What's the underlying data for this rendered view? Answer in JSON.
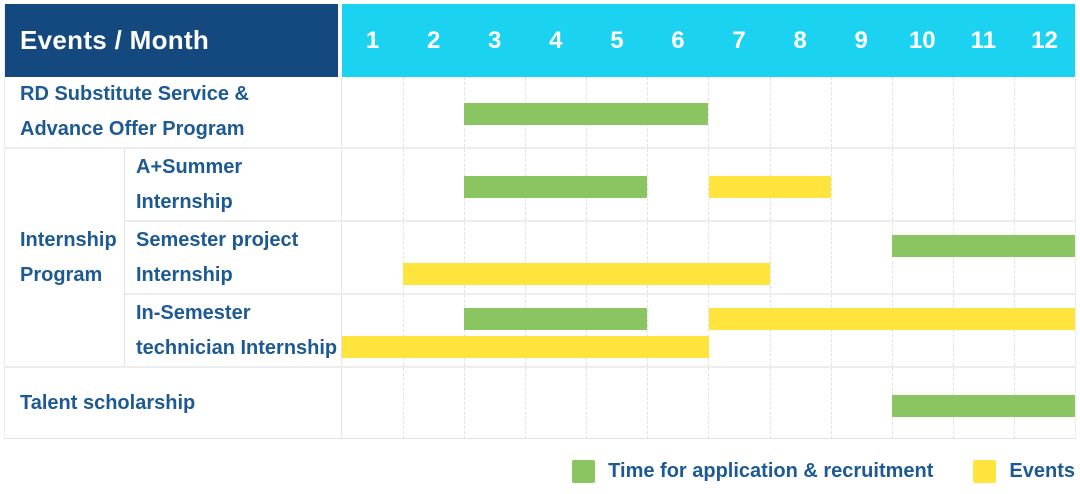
{
  "colors": {
    "navy": "#14497F",
    "cyan": "#1BD2F0",
    "application": "#8BC562",
    "events": "#FFE43D",
    "label_text": "#1D5A93"
  },
  "table": {
    "header": {
      "label": "Events / Month",
      "months": [
        "1",
        "2",
        "3",
        "4",
        "5",
        "6",
        "7",
        "8",
        "9",
        "10",
        "11",
        "12"
      ]
    },
    "body": [
      {
        "kind": "simple",
        "label_lines": [
          "RD Substitute Service &",
          "Advance Offer Program"
        ],
        "bars": [
          {
            "type": "application",
            "from": 3,
            "to": 6,
            "line": "center"
          }
        ]
      },
      {
        "kind": "group",
        "label_lines": [
          "Internship",
          "Program"
        ],
        "children": [
          {
            "label_lines": [
              "A+Summer",
              "Internship"
            ],
            "bars": [
              {
                "type": "application",
                "from": 3,
                "to": 5,
                "line": "center"
              },
              {
                "type": "events",
                "from": 7,
                "to": 8,
                "line": "center"
              }
            ]
          },
          {
            "label_lines": [
              "Semester project",
              "Internship"
            ],
            "bars": [
              {
                "type": "application",
                "from": 10,
                "to": 12,
                "line": "top"
              },
              {
                "type": "events",
                "from": 2,
                "to": 7,
                "line": "bottom"
              }
            ]
          },
          {
            "label_lines": [
              "In-Semester",
              "technician Internship"
            ],
            "bars": [
              {
                "type": "application",
                "from": 3,
                "to": 5,
                "line": "top"
              },
              {
                "type": "events",
                "from": 7,
                "to": 12,
                "line": "top"
              },
              {
                "type": "events",
                "from": 1,
                "to": 6,
                "line": "bottom"
              }
            ]
          }
        ]
      },
      {
        "kind": "simple",
        "label_lines": [
          "Talent scholarship"
        ],
        "bars": [
          {
            "type": "application",
            "from": 10,
            "to": 12,
            "line": "center"
          }
        ]
      }
    ]
  },
  "legend": [
    {
      "key": "application",
      "label": "Time for application & recruitment"
    },
    {
      "key": "events",
      "label": "Events"
    }
  ],
  "chart_data": {
    "type": "gantt",
    "title": "Events / Month",
    "x_axis": {
      "label": "Month",
      "ticks": [
        1,
        2,
        3,
        4,
        5,
        6,
        7,
        8,
        9,
        10,
        11,
        12
      ],
      "range": [
        1,
        12
      ]
    },
    "grid": true,
    "legend_position": "bottom-right",
    "series_colors": {
      "Time for application & recruitment": "#8BC562",
      "Events": "#FFE43D"
    },
    "rows": [
      {
        "name": "RD Substitute Service & Advance Offer Program",
        "group": null,
        "bars": [
          {
            "series": "Time for application & recruitment",
            "start_month": 3,
            "end_month": 6
          }
        ]
      },
      {
        "name": "A+Summer Internship",
        "group": "Internship Program",
        "bars": [
          {
            "series": "Time for application & recruitment",
            "start_month": 3,
            "end_month": 5
          },
          {
            "series": "Events",
            "start_month": 7,
            "end_month": 8
          }
        ]
      },
      {
        "name": "Semester project Internship",
        "group": "Internship Program",
        "bars": [
          {
            "series": "Time for application & recruitment",
            "start_month": 10,
            "end_month": 12
          },
          {
            "series": "Events",
            "start_month": 2,
            "end_month": 7
          }
        ]
      },
      {
        "name": "In-Semester technician Internship",
        "group": "Internship Program",
        "bars": [
          {
            "series": "Time for application & recruitment",
            "start_month": 3,
            "end_month": 5
          },
          {
            "series": "Events",
            "start_month": 7,
            "end_month": 12
          },
          {
            "series": "Events",
            "start_month": 1,
            "end_month": 6
          }
        ]
      },
      {
        "name": "Talent scholarship",
        "group": null,
        "bars": [
          {
            "series": "Time for application & recruitment",
            "start_month": 10,
            "end_month": 12
          }
        ]
      }
    ]
  }
}
